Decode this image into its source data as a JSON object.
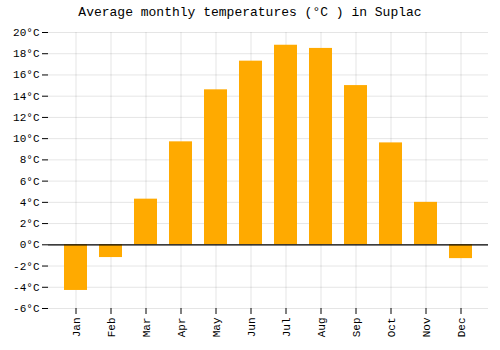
{
  "chart_data": {
    "type": "bar",
    "title": "Average monthly temperatures (°C ) in Suplac",
    "categories": [
      "Jan",
      "Feb",
      "Mar",
      "Apr",
      "May",
      "Jun",
      "Jul",
      "Aug",
      "Sep",
      "Oct",
      "Nov",
      "Dec"
    ],
    "values": [
      -4.3,
      -1.2,
      4.3,
      9.7,
      14.6,
      17.3,
      18.8,
      18.5,
      15.0,
      9.6,
      4.0,
      -1.3
    ],
    "color": "#FFAA00",
    "ylim": [
      -6,
      20
    ],
    "yticks": [
      {
        "value": -6,
        "label": "-6°C"
      },
      {
        "value": -4,
        "label": "-4°C"
      },
      {
        "value": -2,
        "label": "-2°C"
      },
      {
        "value": 0,
        "label": "0°C"
      },
      {
        "value": 2,
        "label": "2°C"
      },
      {
        "value": 4,
        "label": "4°C"
      },
      {
        "value": 6,
        "label": "6°C"
      },
      {
        "value": 8,
        "label": "8°C"
      },
      {
        "value": 10,
        "label": "10°C"
      },
      {
        "value": 12,
        "label": "12°C"
      },
      {
        "value": 14,
        "label": "14°C"
      },
      {
        "value": 16,
        "label": "16°C"
      },
      {
        "value": 18,
        "label": "18°C"
      },
      {
        "value": 20,
        "label": "20°C"
      }
    ],
    "grid": true
  }
}
